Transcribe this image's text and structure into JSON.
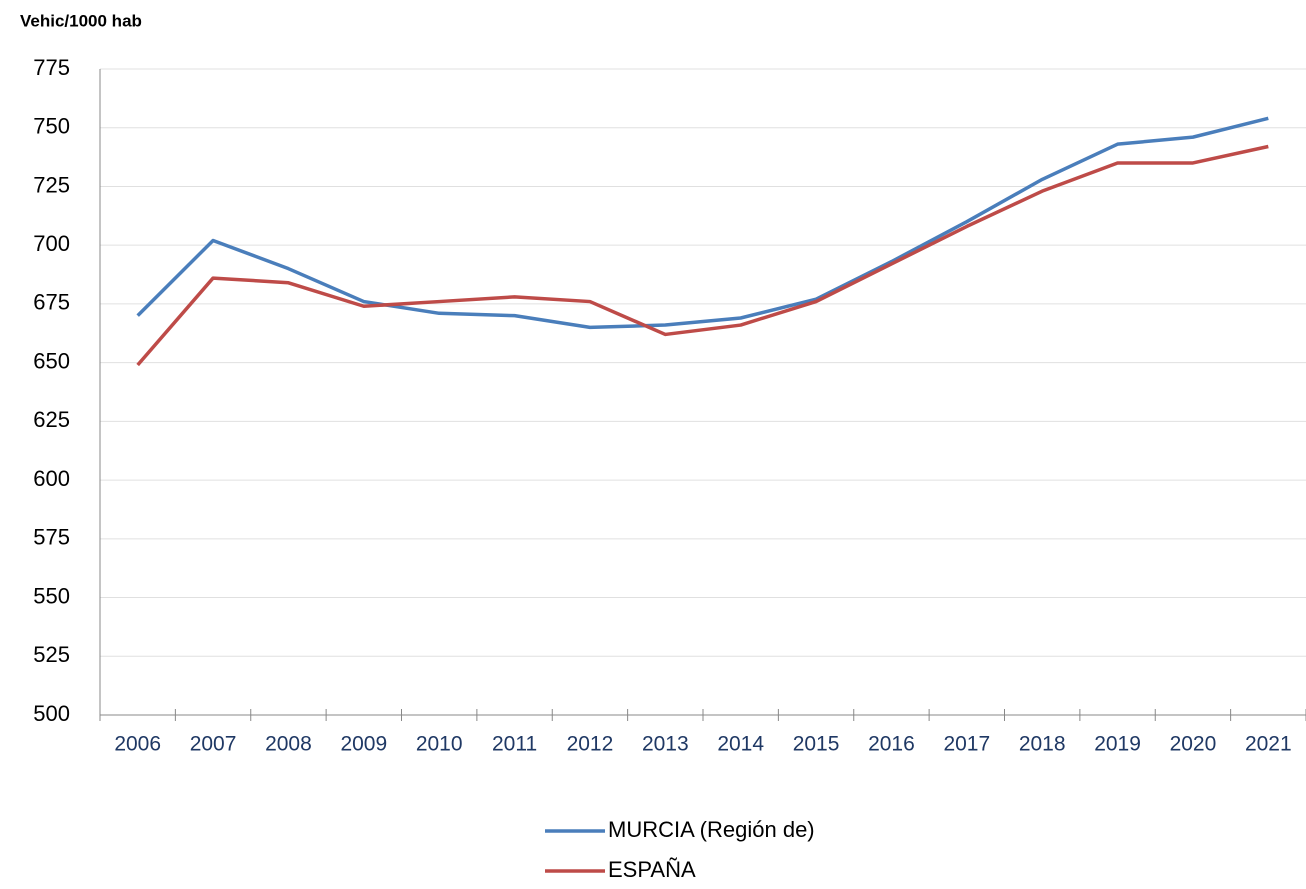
{
  "chart_data": {
    "type": "line",
    "y_label": "Vehic/1000 hab",
    "categories": [
      "2006",
      "2007",
      "2008",
      "2009",
      "2010",
      "2011",
      "2012",
      "2013",
      "2014",
      "2015",
      "2016",
      "2017",
      "2018",
      "2019",
      "2020",
      "2021"
    ],
    "series": [
      {
        "name": "MURCIA (Región de)",
        "color": "#4a7ebb",
        "values": [
          670,
          702,
          690,
          676,
          671,
          670,
          665,
          666,
          669,
          677,
          693,
          710,
          728,
          743,
          746,
          754
        ]
      },
      {
        "name": "ESPAÑA",
        "color": "#be4b48",
        "values": [
          649,
          686,
          684,
          674,
          676,
          678,
          676,
          662,
          666,
          676,
          692,
          708,
          723,
          735,
          735,
          742
        ]
      }
    ],
    "ylim": [
      500,
      775
    ],
    "yticks": [
      500,
      525,
      550,
      575,
      600,
      625,
      650,
      675,
      700,
      725,
      750,
      775
    ],
    "grid": true,
    "legend": "bottom"
  }
}
